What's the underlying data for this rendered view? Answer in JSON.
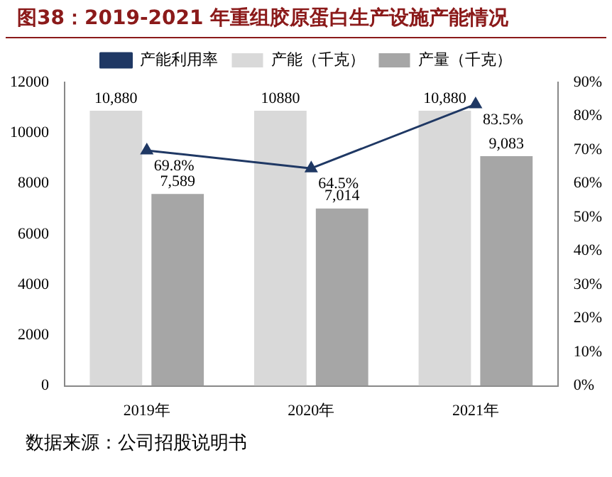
{
  "chart_data": {
    "type": "bar",
    "title": "图38：2019-2021 年重组胶原蛋白生产设施产能情况",
    "categories": [
      "2019年",
      "2020年",
      "2021年"
    ],
    "series": [
      {
        "name": "产能（千克）",
        "color": "#d9d9d9",
        "values": [
          10880,
          10880,
          10880
        ],
        "value_labels": [
          "10,880",
          "10880",
          "10,880"
        ]
      },
      {
        "name": "产量（千克）",
        "color": "#a6a6a6",
        "values": [
          7589,
          7014,
          9083
        ],
        "value_labels": [
          "7,589",
          "7,014",
          "9,083"
        ]
      },
      {
        "name": "产能利用率",
        "type": "line",
        "axis": "y2",
        "color": "#1f3864",
        "values": [
          69.8,
          64.5,
          83.5
        ],
        "value_labels": [
          "69.8%",
          "64.5%",
          "83.5%"
        ]
      }
    ],
    "marker": "triangle",
    "legend": "top",
    "ylim": [
      0,
      12000
    ],
    "yticks": [
      0,
      2000,
      4000,
      6000,
      8000,
      10000,
      12000
    ],
    "y2lim": [
      0,
      90
    ],
    "y2ticks": [
      {
        "value": 0,
        "label": "0%"
      },
      {
        "value": 10,
        "label": "10%"
      },
      {
        "value": 20,
        "label": "20%"
      },
      {
        "value": 30,
        "label": "30%"
      },
      {
        "value": 40,
        "label": "40%"
      },
      {
        "value": 50,
        "label": "50%"
      },
      {
        "value": 60,
        "label": "60%"
      },
      {
        "value": 70,
        "label": "70%"
      },
      {
        "value": 80,
        "label": "80%"
      },
      {
        "value": 90,
        "label": "90%"
      }
    ],
    "annotations": [
      "数据来源：公司招股说明书"
    ]
  }
}
